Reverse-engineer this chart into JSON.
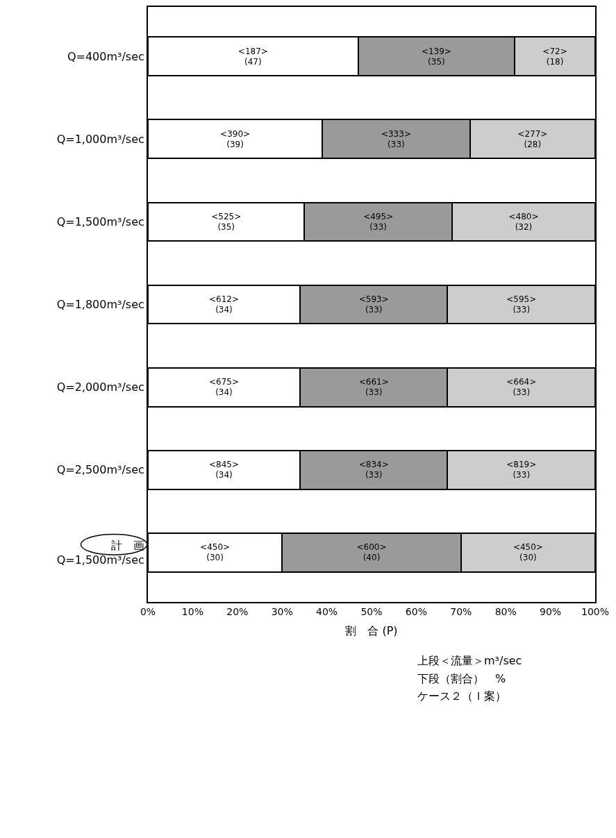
{
  "chart_data": {
    "type": "bar",
    "orientation": "horizontal",
    "stacked": true,
    "xlabel": "割　合 (P)",
    "categories": [
      "Q=400m³/sec",
      "Q=1,000m³/sec",
      "Q=1,500m³/sec",
      "Q=1,800m³/sec",
      "Q=2,000m³/sec",
      "Q=2,500m³/sec",
      "計　画\nQ=1,500m³/sec"
    ],
    "series": [
      {
        "color": "#ffffff",
        "values": [
          47,
          39,
          35,
          34,
          34,
          34,
          30
        ],
        "value_labels": [
          "<187>\n(47)",
          "<390>\n(39)",
          "<525>\n(35)",
          "<612>\n(34)",
          "<675>\n(34)",
          "<845>\n(34)",
          "<450>\n(30)"
        ]
      },
      {
        "color": "#9a9a9a",
        "values": [
          35,
          33,
          33,
          33,
          33,
          33,
          40
        ],
        "value_labels": [
          "<139>\n(35)",
          "<333>\n(33)",
          "<495>\n(33)",
          "<593>\n(33)",
          "<661>\n(33)",
          "<834>\n(33)",
          "<600>\n(40)"
        ]
      },
      {
        "color": "#cdcdcd",
        "values": [
          18,
          28,
          32,
          33,
          33,
          33,
          30
        ],
        "value_labels": [
          "<72>\n(18)",
          "<277>\n(28)",
          "<480>\n(32)",
          "<595>\n(33)",
          "<664>\n(33)",
          "<819>\n(33)",
          "<450>\n(30)"
        ]
      }
    ],
    "xlim": [
      0,
      100
    ],
    "xticks": [
      {
        "value": 0,
        "label": "0%"
      },
      {
        "value": 10,
        "label": "10%"
      },
      {
        "value": 20,
        "label": "20%"
      },
      {
        "value": 30,
        "label": "30%"
      },
      {
        "value": 40,
        "label": "40%"
      },
      {
        "value": 50,
        "label": "50%"
      },
      {
        "value": 60,
        "label": "60%"
      },
      {
        "value": 70,
        "label": "70%"
      },
      {
        "value": 80,
        "label": "80%"
      },
      {
        "value": 90,
        "label": "90%"
      },
      {
        "value": 100,
        "label": "100%"
      }
    ],
    "annotations": [
      "上段＜流量＞m³/sec",
      "下段（割合）　%",
      "ケース２（Ｉ案）"
    ]
  }
}
